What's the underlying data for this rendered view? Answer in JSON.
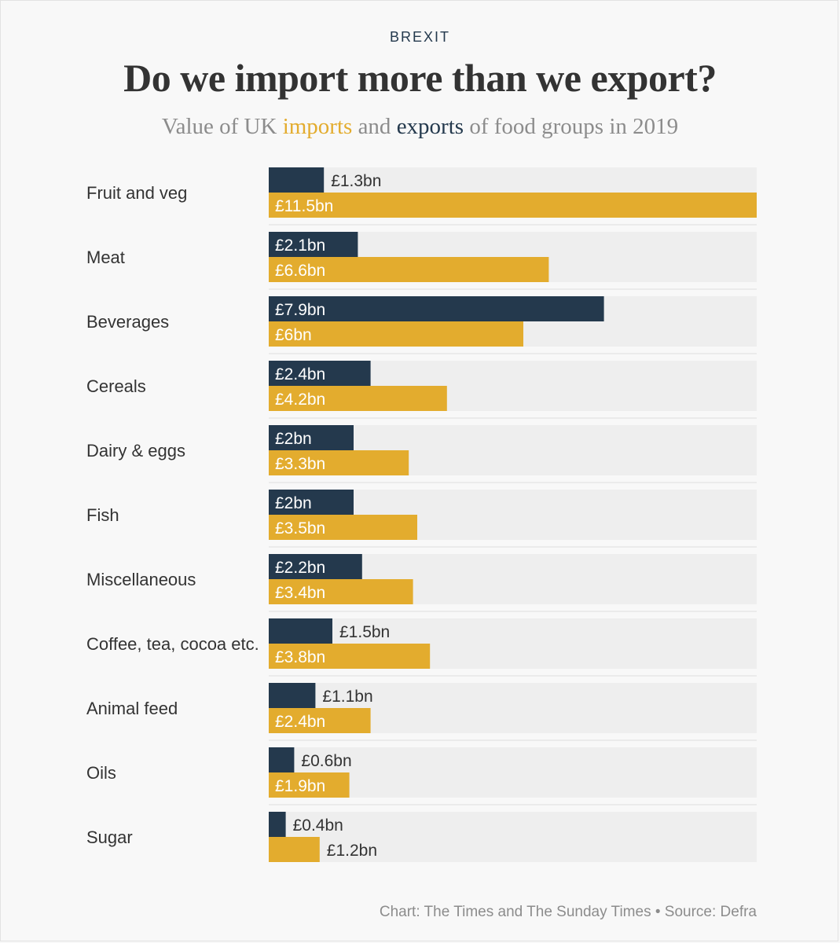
{
  "header": {
    "kicker": "BREXIT",
    "title": "Do we import more than we export?",
    "subtitle_pre": "Value of UK ",
    "subtitle_imports": "imports",
    "subtitle_mid": " and ",
    "subtitle_exports": "exports",
    "subtitle_post": " of  food groups in 2019"
  },
  "footer": {
    "source": "Chart: The Times and The Sunday Times • Source: Defra"
  },
  "colors": {
    "exports": "#24394d",
    "imports": "#e3ac2e",
    "row_background": "#eeeeee",
    "separator": "#dedede"
  },
  "chart_data": {
    "type": "bar",
    "orientation": "horizontal",
    "xlim": [
      0,
      11.5
    ],
    "categories": [
      "Fruit and veg",
      "Meat",
      "Beverages",
      "Cereals",
      "Dairy & eggs",
      "Fish",
      "Miscellaneous",
      "Coffee, tea, cocoa etc.",
      "Animal feed",
      "Oils",
      "Sugar"
    ],
    "series": [
      {
        "name": "exports",
        "values": [
          1.3,
          2.1,
          7.9,
          2.4,
          2,
          2,
          2.2,
          1.5,
          1.1,
          0.6,
          0.4
        ],
        "labels": [
          "£1.3bn",
          "£2.1bn",
          "£7.9bn",
          "£2.4bn",
          "£2bn",
          "£2bn",
          "£2.2bn",
          "£1.5bn",
          "£1.1bn",
          "£0.6bn",
          "£0.4bn"
        ]
      },
      {
        "name": "imports",
        "values": [
          11.5,
          6.6,
          6,
          4.2,
          3.3,
          3.5,
          3.4,
          3.8,
          2.4,
          1.9,
          1.2
        ],
        "labels": [
          "£11.5bn",
          "£6.6bn",
          "£6bn",
          "£4.2bn",
          "£3.3bn",
          "£3.5bn",
          "£3.4bn",
          "£3.8bn",
          "£2.4bn",
          "£1.9bn",
          "£1.2bn"
        ]
      }
    ]
  }
}
